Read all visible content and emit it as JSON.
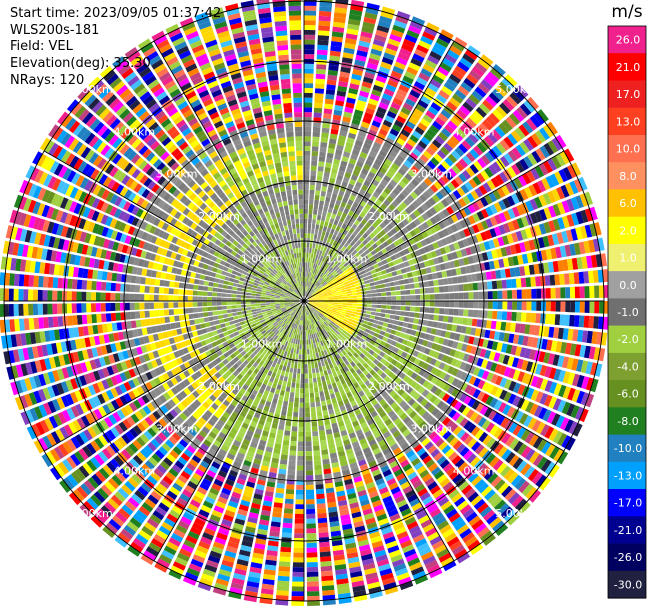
{
  "header": {
    "start_time": "Start time: 2023/09/05 01:37:42",
    "instrument": "WLS200s-181",
    "field": "Field: VEL",
    "elevation": "Elevation(deg): 35.30",
    "nrays": "NRays: 120"
  },
  "colorbar": {
    "unit": "m/s",
    "ticks": [
      "26.0",
      "21.0",
      "17.0",
      "13.0",
      "10.0",
      "8.0",
      "6.0",
      "2.0",
      "1.0",
      "0.0",
      "-1.0",
      "-2.0",
      "-4.0",
      "-6.0",
      "-8.0",
      "-10.0",
      "-13.0",
      "-17.0",
      "-21.0",
      "-26.0",
      "-30.0"
    ],
    "colors": [
      "#f0208c",
      "#ff0000",
      "#ee2020",
      "#ff4020",
      "#ff7050",
      "#ff9060",
      "#ffc000",
      "#ffff00",
      "#f0f070",
      "#a0a0a0",
      "#707070",
      "#a0d040",
      "#7ea030",
      "#669020",
      "#208020",
      "#2080c0",
      "#00a0ff",
      "#0000ff",
      "#000090",
      "#000060",
      "#202040"
    ]
  },
  "chart_data": {
    "type": "ppi",
    "field": "VEL",
    "nrays": 120,
    "range_rings_km": [
      1.0,
      2.0,
      3.0,
      4.0,
      5.0
    ],
    "range_labels": [
      "1.00km",
      "2.00km",
      "3.00km",
      "4.00km",
      "5.00km"
    ],
    "max_range_km": 5.0,
    "spoke_angles_deg": [
      0,
      30,
      60,
      90,
      120,
      150,
      180,
      210,
      240,
      270,
      300,
      330
    ],
    "value_range": [
      -30.0,
      26.0
    ],
    "unit": "m/s"
  }
}
